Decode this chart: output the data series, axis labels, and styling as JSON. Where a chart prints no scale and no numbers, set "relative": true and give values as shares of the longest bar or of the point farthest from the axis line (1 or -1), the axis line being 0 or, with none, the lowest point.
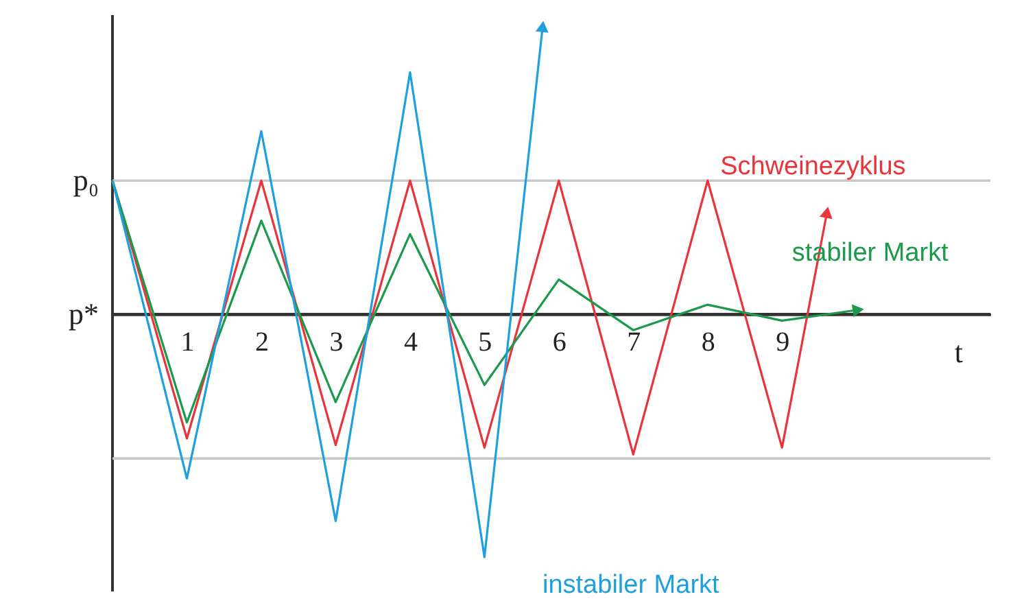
{
  "chart_data": {
    "type": "line",
    "xlabel": "t",
    "relative": true,
    "xlim": [
      0,
      11.8
    ],
    "xticks": [
      1,
      2,
      3,
      4,
      5,
      6,
      7,
      8,
      9
    ],
    "grid": false,
    "legend": false,
    "marker": "none",
    "line_style": "solid",
    "ref_lines": [
      {
        "axis": "y",
        "value": 0.467,
        "label": "p₀",
        "color": "#c8c8c8"
      },
      {
        "axis": "y",
        "value": 0,
        "label": "p*",
        "color": "#333333"
      },
      {
        "axis": "y",
        "value": -0.505,
        "label": null,
        "color": "#c8c8c8"
      }
    ],
    "series": [
      {
        "name": "Schweinezyklus",
        "color": "#e8343a",
        "x": [
          0,
          1,
          2,
          3,
          4,
          5,
          6,
          7,
          8,
          9,
          9.6
        ],
        "values": [
          0.467,
          -0.435,
          0.467,
          -0.458,
          0.467,
          -0.467,
          0.467,
          -0.491,
          0.467,
          -0.467,
          0.35
        ]
      },
      {
        "name": "stabiler Markt",
        "color": "#1a9a4a",
        "x": [
          0,
          1,
          2,
          3,
          4,
          5,
          6,
          7,
          8,
          9,
          10
        ],
        "values": [
          0.467,
          -0.379,
          0.327,
          -0.308,
          0.28,
          -0.248,
          0.121,
          -0.056,
          0.033,
          -0.023,
          0.014
        ]
      },
      {
        "name": "instabiler Markt",
        "color": "#1ea0e0",
        "x": [
          0,
          1,
          2,
          3,
          4,
          5,
          5.78
        ],
        "values": [
          0.467,
          -0.575,
          0.64,
          -0.724,
          0.846,
          -0.85,
          1
        ]
      }
    ]
  }
}
